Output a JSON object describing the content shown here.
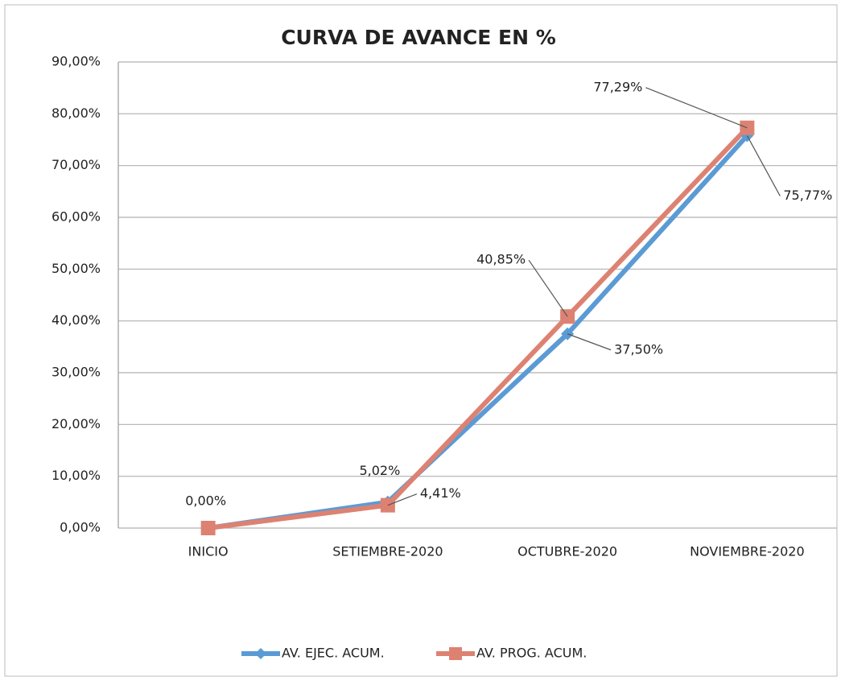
{
  "chart_data": {
    "type": "line",
    "title": "CURVA DE AVANCE EN %",
    "categories": [
      "INICIO",
      "SETIEMBRE-2020",
      "OCTUBRE-2020",
      "NOVIEMBRE-2020"
    ],
    "series": [
      {
        "name": "AV. EJEC. ACUM.",
        "color": "#5b9bd5",
        "marker": "diamond",
        "values": [
          0,
          5.02,
          37.5,
          75.77
        ],
        "value_labels": [
          null,
          "5,02%",
          "37,50%",
          "75,77%"
        ]
      },
      {
        "name": "AV. PROG. ACUM.",
        "color": "#dd8272",
        "marker": "square",
        "values": [
          0,
          4.41,
          40.85,
          77.29
        ],
        "value_labels": [
          "0,00%",
          "4,41%",
          "40,85%",
          "77,29%"
        ]
      }
    ],
    "ylim": [
      0,
      90
    ],
    "yticks": [
      {
        "value": 0,
        "label": "0,00%"
      },
      {
        "value": 10,
        "label": "10,00%"
      },
      {
        "value": 20,
        "label": "20,00%"
      },
      {
        "value": 30,
        "label": "30,00%"
      },
      {
        "value": 40,
        "label": "40,00%"
      },
      {
        "value": 50,
        "label": "50,00%"
      },
      {
        "value": 60,
        "label": "60,00%"
      },
      {
        "value": 70,
        "label": "70,00%"
      },
      {
        "value": 80,
        "label": "80,00%"
      },
      {
        "value": 90,
        "label": "90,00%"
      }
    ],
    "grid": true,
    "legend": "bottom"
  }
}
